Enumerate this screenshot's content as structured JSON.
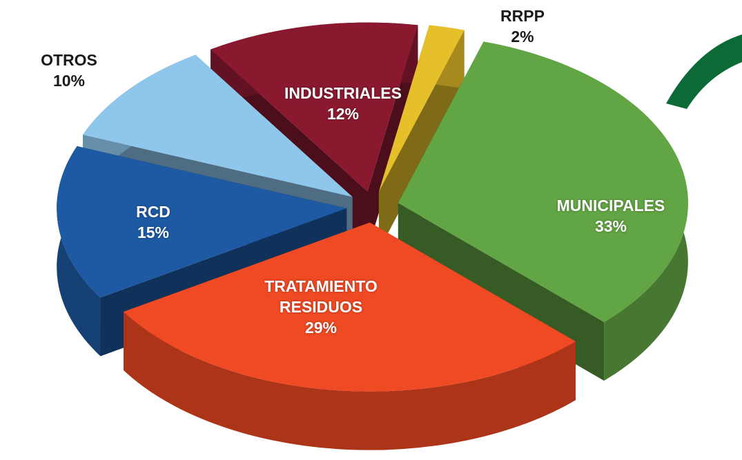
{
  "chart_data": {
    "type": "pie",
    "categories": [
      "RRPP",
      "MUNICIPALES",
      "TRATAMIENTO RESIDUOS",
      "RCD",
      "OTROS",
      "INDUSTRIALES"
    ],
    "values": [
      2,
      33,
      29,
      15,
      10,
      12
    ],
    "value_labels": [
      "2%",
      "33%",
      "29%",
      "15%",
      "10%",
      "12%"
    ],
    "colors": [
      "#e6c02a",
      "#62a544",
      "#ef4a23",
      "#1d5aa3",
      "#8fc6ec",
      "#8a1930"
    ]
  }
}
